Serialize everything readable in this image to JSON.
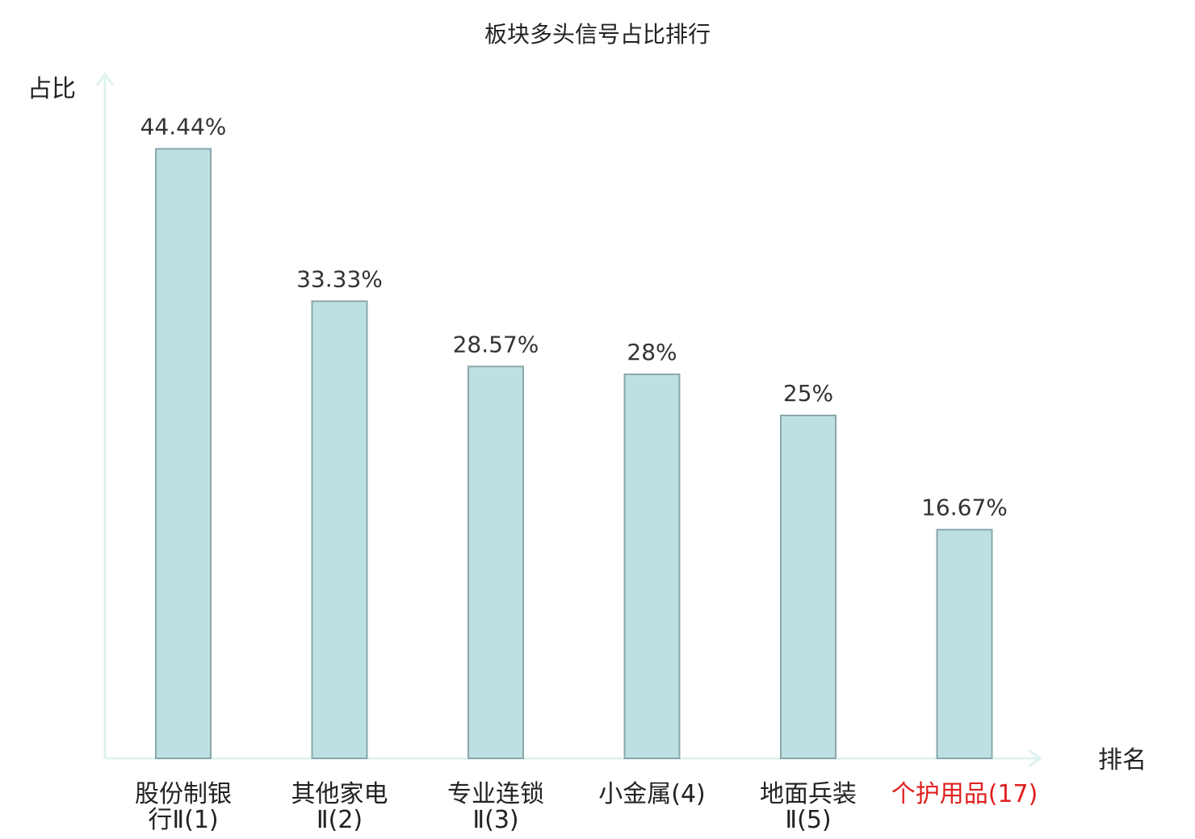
{
  "chart_data": {
    "type": "bar",
    "title": "板块多头信号占比排行",
    "ylabel": "占比",
    "xlabel": "排名",
    "categories": [
      [
        "股份制银",
        "行Ⅱ(1)"
      ],
      [
        "其他家电",
        "Ⅱ(2)"
      ],
      [
        "专业连锁",
        "Ⅱ(3)"
      ],
      [
        "小金属(4)"
      ],
      [
        "地面兵装",
        "Ⅱ(5)"
      ],
      [
        "个护用品(17)"
      ]
    ],
    "values": [
      44.44,
      33.33,
      28.57,
      28,
      25,
      16.67
    ],
    "value_labels": [
      "44.44%",
      "33.33%",
      "28.57%",
      "28%",
      "25%",
      "16.67%"
    ],
    "highlight_index": 5,
    "colors": {
      "bar_fill": "#bde0e3",
      "bar_stroke": "#8aa7aa",
      "axis": "#dff2ef",
      "highlight_label": "#e02020",
      "label": "#222222"
    },
    "grid": false
  }
}
